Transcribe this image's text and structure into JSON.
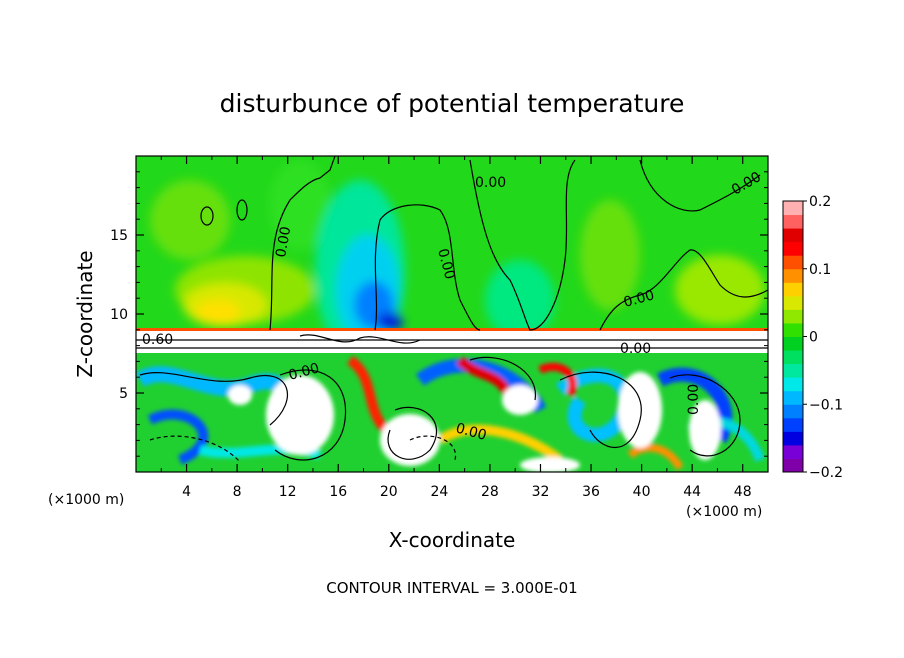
{
  "chart_data": {
    "type": "heatmap",
    "title": "disturbunce of potential temperature",
    "xlabel": "X-coordinate",
    "ylabel": "Z-coordinate",
    "x_unit_left": "(×1000 m)",
    "x_unit_right": "(×1000 m)",
    "footer": "CONTOUR INTERVAL = 3.000E-01",
    "xlim": [
      0,
      50
    ],
    "ylim": [
      0,
      20
    ],
    "x_ticks": [
      "4",
      "8",
      "12",
      "16",
      "20",
      "24",
      "28",
      "32",
      "36",
      "40",
      "44",
      "48"
    ],
    "y_ticks": [
      "5",
      "10",
      "15"
    ],
    "colorbar": {
      "range": [
        -0.2,
        0.2
      ],
      "tick_labels": [
        "0.2",
        "0.1",
        "0",
        "−0.1",
        "−0.2"
      ],
      "tick_values": [
        0.2,
        0.1,
        0,
        -0.1,
        -0.2
      ],
      "colors": [
        "#7f00a8",
        "#7a00d8",
        "#0000e0",
        "#0040ff",
        "#0080ff",
        "#00b8ff",
        "#00e8e8",
        "#00e8a0",
        "#00e060",
        "#00d020",
        "#30e000",
        "#90e800",
        "#d8e800",
        "#ffd000",
        "#ff9000",
        "#ff5000",
        "#ff0000",
        "#e00000",
        "#ff6060",
        "#ffb0b0"
      ]
    },
    "contour_labels": [
      {
        "text": "0.00"
      },
      {
        "text": "0.00"
      },
      {
        "text": "0.00"
      },
      {
        "text": "0.00"
      },
      {
        "text": "0.00"
      },
      {
        "text": "0.00"
      },
      {
        "text": "0.60"
      },
      {
        "text": "0.00"
      },
      {
        "text": "0.00"
      },
      {
        "text": "0.00"
      }
    ]
  }
}
